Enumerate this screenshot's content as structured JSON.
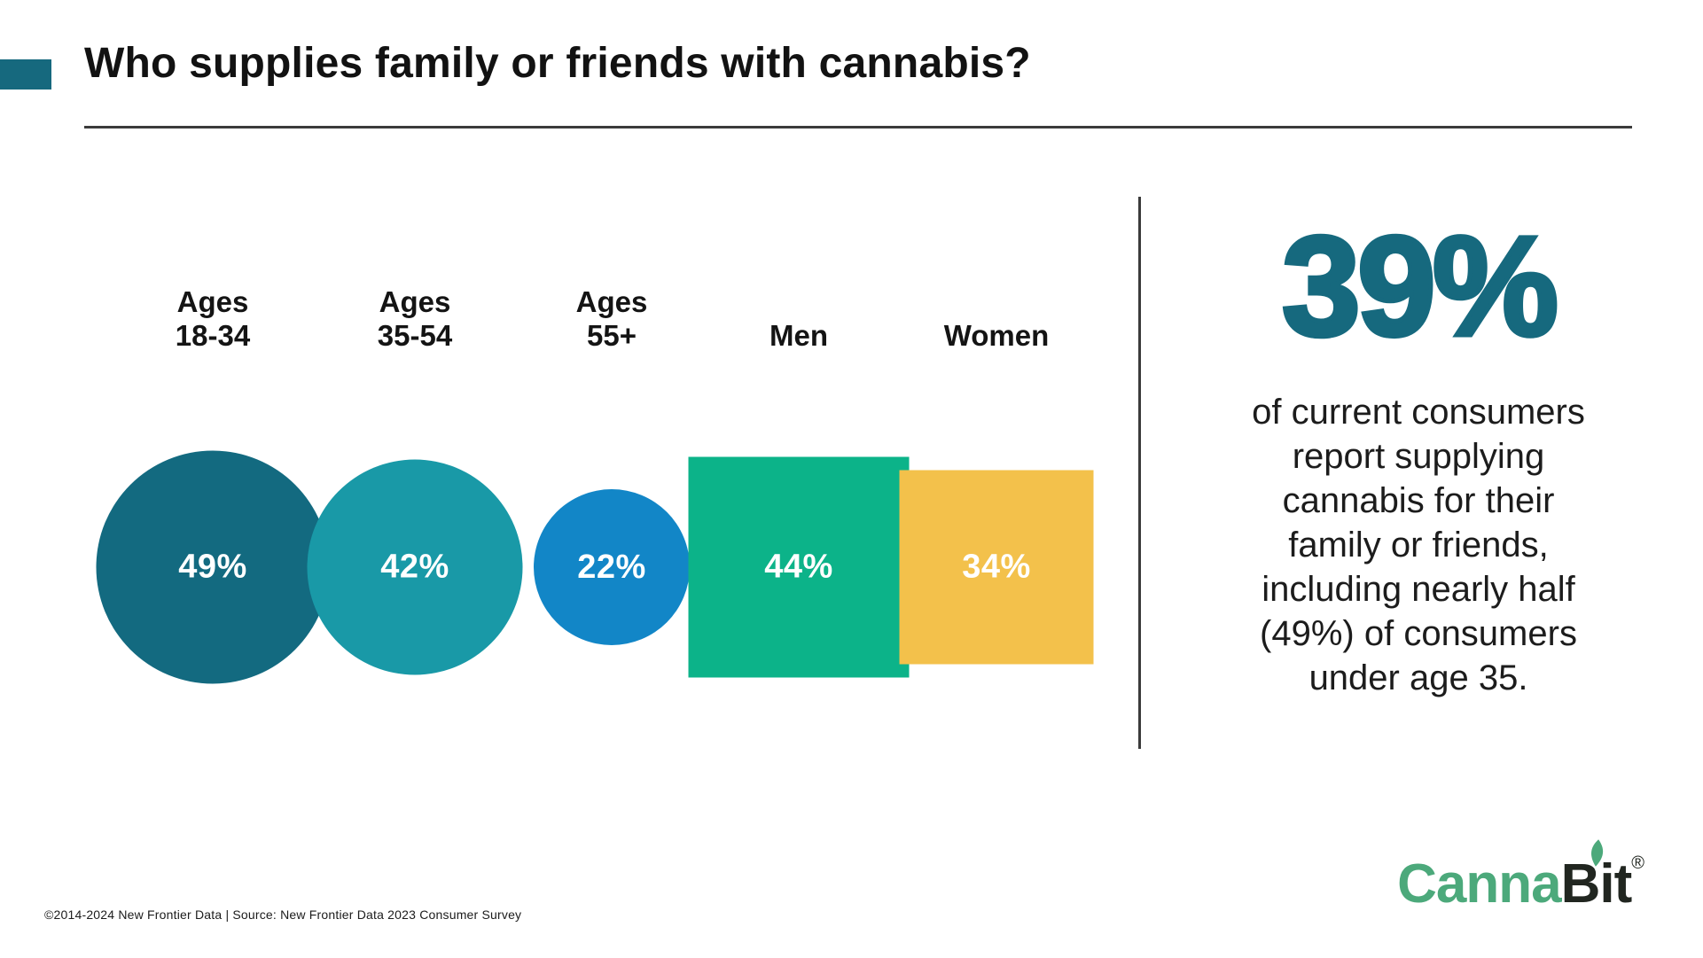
{
  "header": {
    "title": "Who supplies family or friends with cannabis?",
    "accent_color": "#16697E"
  },
  "chart_data": {
    "type": "proportional_area",
    "title": "Who supplies family or friends with cannabis?",
    "unit": "%",
    "legend": "none",
    "value_text_color": "#FFFFFF",
    "items": [
      {
        "label": "Ages\n18-34",
        "value": 49,
        "value_label": "49%",
        "shape": "circle",
        "color": "#136A80"
      },
      {
        "label": "Ages\n35-54",
        "value": 42,
        "value_label": "42%",
        "shape": "circle",
        "color": "#1999A7"
      },
      {
        "label": "Ages\n55+",
        "value": 22,
        "value_label": "22%",
        "shape": "circle",
        "color": "#1286C7"
      },
      {
        "label": "Men",
        "value": 44,
        "value_label": "44%",
        "shape": "square",
        "color": "#0CB389"
      },
      {
        "label": "Women",
        "value": 34,
        "value_label": "34%",
        "shape": "square",
        "color": "#F3C14B"
      }
    ]
  },
  "callout": {
    "headline": "39%",
    "headline_color": "#16697E",
    "body_lines": [
      "of current consumers",
      "report supplying",
      "cannabis for their",
      "family or friends,",
      "including nearly half",
      "(49%) of consumers",
      "under age 35."
    ]
  },
  "footer": {
    "source_text": "©2014-2024  New Frontier Data | Source: New Frontier Data 2023 Consumer Survey"
  },
  "logo": {
    "part_green": "Canna",
    "part_dark": "Bit",
    "registered_mark": "®",
    "green": "#4CA97B",
    "dark": "#212620"
  }
}
